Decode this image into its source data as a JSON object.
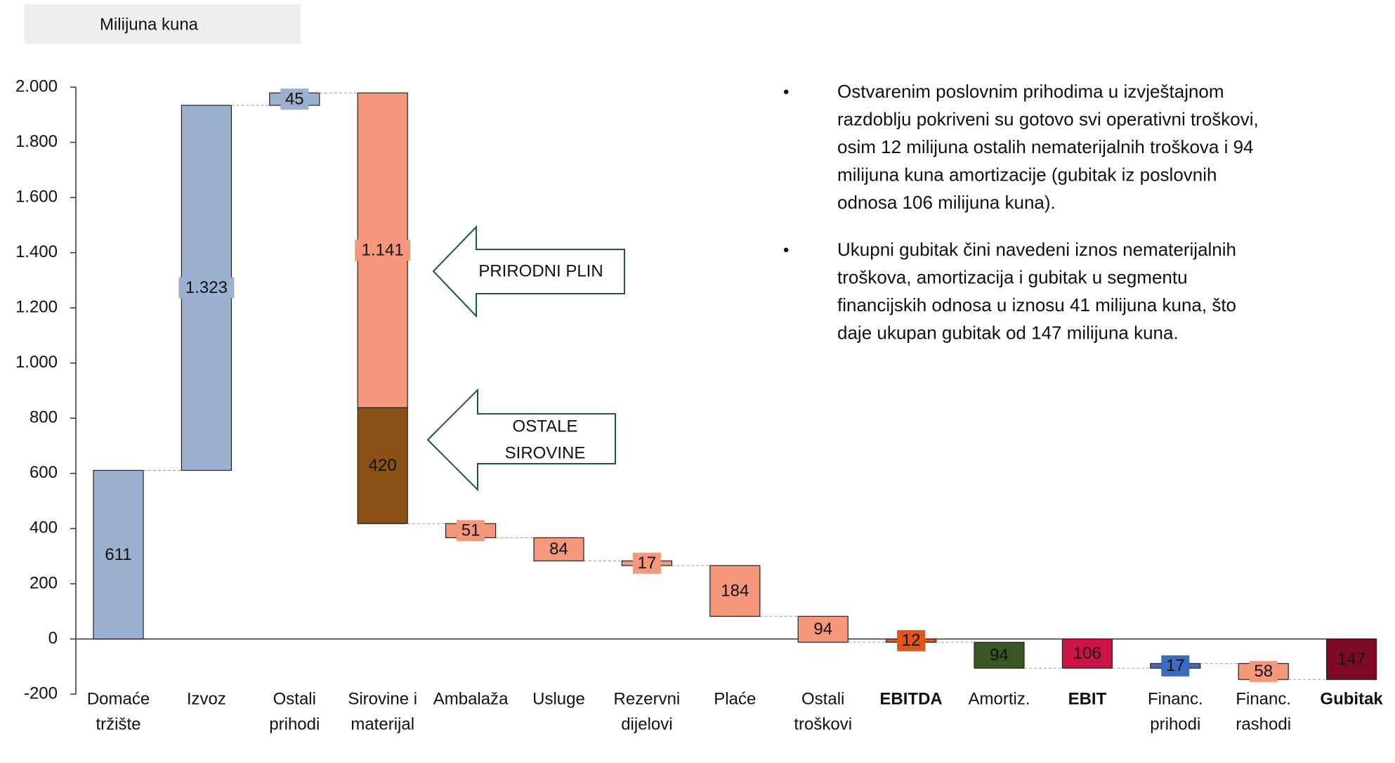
{
  "chart_data": {
    "type": "waterfall",
    "subtitle": "Milijuna kuna",
    "categories": [
      [
        "Domaće",
        "tržište"
      ],
      [
        "Izvoz"
      ],
      [
        "Ostali",
        "prihodi"
      ],
      [
        "Sirovine i",
        "materijal"
      ],
      [
        "Ambalaža"
      ],
      [
        "Usluge"
      ],
      [
        "Rezervni",
        "dijelovi"
      ],
      [
        "Plaće"
      ],
      [
        "Ostali",
        "troškovi"
      ],
      [
        "EBITDA"
      ],
      [
        "Amortiz."
      ],
      [
        "EBIT"
      ],
      [
        "Financ.",
        "prihodi"
      ],
      [
        "Financ.",
        "rashodi"
      ],
      [
        "Gubitak"
      ]
    ],
    "kinds": [
      "delta",
      "delta",
      "delta",
      "delta",
      "delta",
      "delta",
      "delta",
      "delta",
      "delta",
      "total",
      "delta",
      "total",
      "delta",
      "delta",
      "total"
    ],
    "values": [
      [
        611
      ],
      [
        1323
      ],
      [
        45
      ],
      [
        -1141,
        -420
      ],
      [
        -51
      ],
      [
        -84
      ],
      [
        -17
      ],
      [
        -184
      ],
      [
        -94
      ],
      [
        -12
      ],
      [
        -94
      ],
      [
        -106
      ],
      [
        17
      ],
      [
        -58
      ],
      [
        -147
      ]
    ],
    "value_labels": [
      [
        "611"
      ],
      [
        "1.323"
      ],
      [
        "45"
      ],
      [
        "1.141",
        "420"
      ],
      [
        "51"
      ],
      [
        "84"
      ],
      [
        "17"
      ],
      [
        "184"
      ],
      [
        "94"
      ],
      [
        "12"
      ],
      [
        "94"
      ],
      [
        "106"
      ],
      [
        "17"
      ],
      [
        "58"
      ],
      [
        "147"
      ]
    ],
    "colors": [
      [
        "#9cb0cf"
      ],
      [
        "#9cb0cf"
      ],
      [
        "#9cb0cf"
      ],
      [
        "#f4977b",
        "#8a5016"
      ],
      [
        "#f4977b"
      ],
      [
        "#f4977b"
      ],
      [
        "#f4977b"
      ],
      [
        "#f4977b"
      ],
      [
        "#f4977b"
      ],
      [
        "#e0561e"
      ],
      [
        "#385723"
      ],
      [
        "#cc1246"
      ],
      [
        "#3b6bbd"
      ],
      [
        "#f4977b"
      ],
      [
        "#7c0a24"
      ]
    ],
    "ylim": [
      -200,
      2000
    ],
    "yticks": [
      -200,
      0,
      200,
      400,
      600,
      800,
      {
        "value": 1000,
        "label": "1.000"
      },
      {
        "value": 1200,
        "label": "1.200"
      },
      {
        "value": 1400,
        "label": "1.400"
      },
      {
        "value": 1600,
        "label": "1.600"
      },
      {
        "value": 1800,
        "label": "1.800"
      },
      {
        "value": 2000,
        "label": "2.000"
      }
    ],
    "annotations": [
      [
        "PRIRODNI PLIN"
      ],
      [
        "OSTALE",
        "SIROVINE"
      ]
    ],
    "notes": [
      [
        "Ostvarenim poslovnim prihodima u izvještajnom",
        "razdoblju pokriveni su gotovo svi operativni troškovi,",
        "osim 12 milijuna ostalih nematerijalnih troškova i 94",
        "milijuna kuna amortizacije  (gubitak iz poslovnih",
        "odnosa 106 milijuna kuna)."
      ],
      [
        "Ukupni gubitak čini navedeni iznos nematerijalnih",
        "troškova,   amortizacija i gubitak u segmentu",
        "financijskih odnosa u iznosu 41 milijuna kuna, što",
        "daje ukupan gubitak od 147 milijuna kuna."
      ]
    ]
  }
}
